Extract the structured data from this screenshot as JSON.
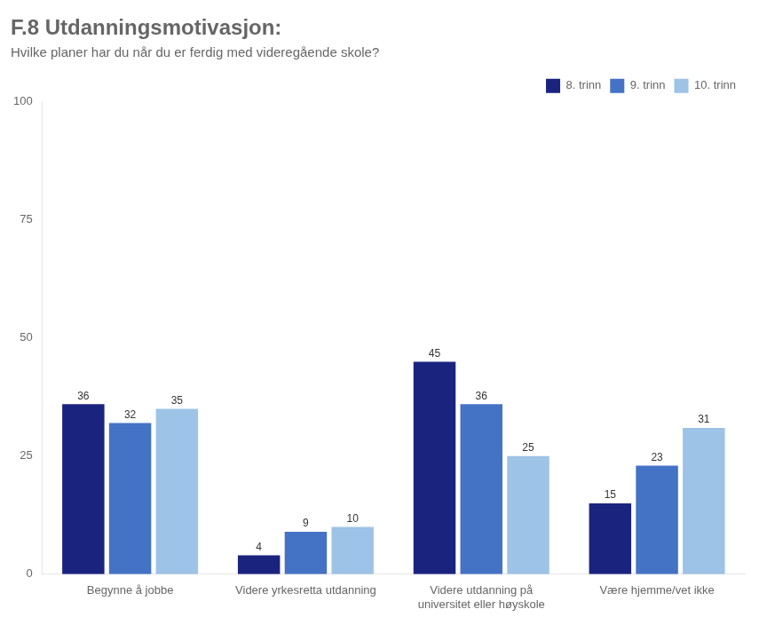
{
  "chart_data": {
    "type": "bar",
    "title": "F.8 Utdanningsmotivasjon:",
    "subtitle": "Hvilke planer har du når du er ferdig med videregående skole?",
    "categories": [
      "Begynne å jobbe",
      "Videre yrkesretta utdanning",
      "Videre utdanning på\nuniversitet eller høyskole",
      "Være hjemme/vet ikke"
    ],
    "series": [
      {
        "name": "8. trinn",
        "color": "#1a237e",
        "values": [
          36,
          4,
          45,
          15
        ]
      },
      {
        "name": "9. trinn",
        "color": "#4472c4",
        "values": [
          32,
          9,
          36,
          23
        ]
      },
      {
        "name": "10. trinn",
        "color": "#9dc3e6",
        "values": [
          35,
          10,
          25,
          31
        ]
      }
    ],
    "ylim": [
      0,
      100
    ],
    "yticks": [
      0,
      25,
      50,
      75,
      100
    ],
    "grid": false,
    "legend": "upper right",
    "data_labels": true
  }
}
